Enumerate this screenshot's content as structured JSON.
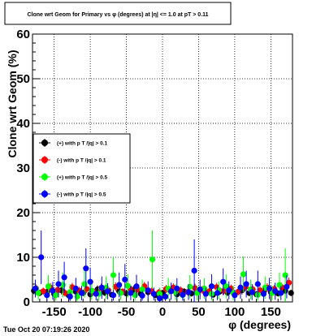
{
  "chart_data": {
    "type": "scatter",
    "title": "Clone wrt Geom for Primary vs φ (degrees) at |η| <= 1.0 at pT > 0.11",
    "xlabel": "φ (degrees)",
    "ylabel": "Clone wrt  Geom (%)",
    "xlim": [
      -180,
      180
    ],
    "ylim": [
      0,
      60
    ],
    "x_ticks": [
      -150,
      -100,
      -50,
      0,
      50,
      100,
      150
    ],
    "y_ticks": [
      0,
      10,
      20,
      30,
      40,
      50,
      60
    ],
    "grid": true,
    "legend_position": "middle-left",
    "series": [
      {
        "name": "(+) with p T /|q| > 0.1",
        "color": "#000000",
        "points": [
          [
            -178,
            2.5,
            0.8
          ],
          [
            -170,
            2.0,
            0.7
          ],
          [
            -160,
            2.2,
            0.8
          ],
          [
            -150,
            1.8,
            0.7
          ],
          [
            -140,
            2.6,
            0.9
          ],
          [
            -130,
            1.5,
            0.6
          ],
          [
            -120,
            2.3,
            0.8
          ],
          [
            -110,
            2.0,
            0.7
          ],
          [
            -100,
            1.7,
            0.7
          ],
          [
            -90,
            2.8,
            0.9
          ],
          [
            -80,
            2.1,
            0.8
          ],
          [
            -70,
            1.6,
            0.6
          ],
          [
            -60,
            2.4,
            0.8
          ],
          [
            -50,
            1.9,
            0.7
          ],
          [
            -40,
            2.7,
            0.9
          ],
          [
            -30,
            1.8,
            0.7
          ],
          [
            -20,
            2.2,
            0.8
          ],
          [
            -10,
            1.5,
            0.6
          ],
          [
            0,
            2.0,
            0.7
          ],
          [
            10,
            2.6,
            0.9
          ],
          [
            20,
            1.7,
            0.7
          ],
          [
            30,
            2.3,
            0.8
          ],
          [
            40,
            1.9,
            0.7
          ],
          [
            50,
            2.5,
            0.9
          ],
          [
            60,
            2.0,
            0.7
          ],
          [
            70,
            1.6,
            0.6
          ],
          [
            80,
            2.4,
            0.8
          ],
          [
            90,
            2.1,
            0.8
          ],
          [
            100,
            1.8,
            0.7
          ],
          [
            110,
            2.6,
            0.9
          ],
          [
            120,
            2.0,
            0.7
          ],
          [
            130,
            1.7,
            0.7
          ],
          [
            140,
            2.3,
            0.8
          ],
          [
            150,
            2.2,
            0.8
          ],
          [
            160,
            1.9,
            0.7
          ],
          [
            170,
            2.5,
            0.9
          ],
          [
            178,
            2.0,
            0.7
          ]
        ]
      },
      {
        "name": "(-) with p T /|q| > 0.1",
        "color": "#ff0000",
        "points": [
          [
            -175,
            3.0,
            0.9
          ],
          [
            -165,
            2.4,
            0.8
          ],
          [
            -155,
            3.2,
            1.0
          ],
          [
            -145,
            2.7,
            0.9
          ],
          [
            -135,
            2.0,
            0.8
          ],
          [
            -125,
            3.3,
            1.0
          ],
          [
            -115,
            2.5,
            0.9
          ],
          [
            -105,
            2.9,
            0.9
          ],
          [
            -95,
            2.2,
            0.8
          ],
          [
            -85,
            3.1,
            1.0
          ],
          [
            -75,
            2.6,
            0.9
          ],
          [
            -65,
            3.4,
            1.0
          ],
          [
            -55,
            2.3,
            0.8
          ],
          [
            -45,
            3.0,
            0.9
          ],
          [
            -35,
            2.8,
            0.9
          ],
          [
            -25,
            3.5,
            1.0
          ],
          [
            -15,
            2.4,
            0.8
          ],
          [
            -5,
            2.1,
            0.8
          ],
          [
            5,
            2.9,
            0.9
          ],
          [
            15,
            3.2,
            1.0
          ],
          [
            25,
            2.6,
            0.9
          ],
          [
            35,
            2.2,
            0.8
          ],
          [
            45,
            3.1,
            1.0
          ],
          [
            55,
            2.7,
            0.9
          ],
          [
            65,
            2.4,
            0.8
          ],
          [
            75,
            3.3,
            1.0
          ],
          [
            85,
            2.5,
            0.9
          ],
          [
            95,
            3.0,
            0.9
          ],
          [
            105,
            2.3,
            0.8
          ],
          [
            115,
            3.4,
            1.0
          ],
          [
            125,
            2.8,
            0.9
          ],
          [
            135,
            2.6,
            0.9
          ],
          [
            145,
            3.2,
            1.0
          ],
          [
            155,
            2.9,
            0.9
          ],
          [
            165,
            3.3,
            1.0
          ],
          [
            175,
            4.3,
            1.2
          ]
        ]
      },
      {
        "name": "(+) with p T /|q| > 0.5",
        "color": "#00ff00",
        "points": [
          [
            -172,
            2.0,
            1.5
          ],
          [
            -158,
            3.5,
            2.5
          ],
          [
            -148,
            1.5,
            1.2
          ],
          [
            -138,
            3.8,
            2.8
          ],
          [
            -128,
            2.2,
            1.8
          ],
          [
            -118,
            1.2,
            1.0
          ],
          [
            -108,
            4.0,
            3.0
          ],
          [
            -98,
            2.5,
            2.0
          ],
          [
            -88,
            1.8,
            1.5
          ],
          [
            -78,
            3.2,
            2.5
          ],
          [
            -68,
            6.0,
            4.0
          ],
          [
            -58,
            2.0,
            1.6
          ],
          [
            -48,
            3.6,
            2.6
          ],
          [
            -38,
            1.5,
            1.2
          ],
          [
            -28,
            2.8,
            2.2
          ],
          [
            -14,
            9.5,
            6.5
          ],
          [
            -4,
            1.8,
            1.4
          ],
          [
            8,
            3.0,
            2.4
          ],
          [
            18,
            2.2,
            1.8
          ],
          [
            28,
            1.5,
            1.2
          ],
          [
            38,
            3.4,
            2.6
          ],
          [
            48,
            2.0,
            1.6
          ],
          [
            58,
            3.0,
            2.3
          ],
          [
            68,
            1.8,
            1.4
          ],
          [
            78,
            2.6,
            2.0
          ],
          [
            88,
            3.5,
            2.7
          ],
          [
            98,
            2.0,
            1.6
          ],
          [
            112,
            6.2,
            4.0
          ],
          [
            122,
            2.8,
            2.2
          ],
          [
            132,
            1.6,
            1.3
          ],
          [
            142,
            3.2,
            2.5
          ],
          [
            152,
            2.0,
            1.6
          ],
          [
            162,
            3.8,
            2.8
          ],
          [
            170,
            6.0,
            6.0
          ]
        ]
      },
      {
        "name": "(-) with p T /|q| > 0.5",
        "color": "#0000ff",
        "points": [
          [
            -176,
            3.0,
            2.0
          ],
          [
            -168,
            10.0,
            6.0
          ],
          [
            -160,
            1.5,
            1.2
          ],
          [
            -152,
            2.5,
            2.0
          ],
          [
            -144,
            4.0,
            3.0
          ],
          [
            -136,
            5.5,
            3.5
          ],
          [
            -128,
            1.2,
            1.0
          ],
          [
            -120,
            3.0,
            2.4
          ],
          [
            -112,
            2.0,
            1.6
          ],
          [
            -106,
            7.5,
            4.5
          ],
          [
            -100,
            4.5,
            3.2
          ],
          [
            -92,
            1.8,
            1.4
          ],
          [
            -84,
            3.2,
            2.5
          ],
          [
            -76,
            2.4,
            1.8
          ],
          [
            -68,
            1.5,
            1.2
          ],
          [
            -60,
            3.8,
            2.8
          ],
          [
            -52,
            5.0,
            3.5
          ],
          [
            -44,
            2.0,
            1.6
          ],
          [
            -36,
            3.5,
            2.6
          ],
          [
            -28,
            1.4,
            1.1
          ],
          [
            -20,
            2.6,
            2.0
          ],
          [
            -12,
            1.8,
            1.4
          ],
          [
            -4,
            0.8,
            0.8
          ],
          [
            4,
            1.2,
            1.0
          ],
          [
            12,
            2.4,
            1.9
          ],
          [
            20,
            3.0,
            2.3
          ],
          [
            28,
            1.6,
            1.3
          ],
          [
            36,
            2.2,
            1.8
          ],
          [
            44,
            7.0,
            7.0
          ],
          [
            52,
            2.8,
            2.2
          ],
          [
            60,
            1.8,
            1.4
          ],
          [
            68,
            3.5,
            2.7
          ],
          [
            76,
            2.0,
            1.6
          ],
          [
            84,
            4.5,
            3.0
          ],
          [
            92,
            2.6,
            2.0
          ],
          [
            100,
            1.5,
            1.2
          ],
          [
            108,
            3.2,
            2.5
          ],
          [
            116,
            4.0,
            3.0
          ],
          [
            124,
            2.2,
            1.8
          ],
          [
            132,
            4.0,
            3.0
          ],
          [
            140,
            1.8,
            1.4
          ],
          [
            148,
            3.0,
            2.4
          ],
          [
            156,
            2.4,
            1.9
          ],
          [
            164,
            2.0,
            1.6
          ],
          [
            172,
            3.4,
            2.6
          ]
        ]
      }
    ]
  },
  "footer": {
    "timestamp": "Tue Oct 20 07:19:26 2020"
  }
}
